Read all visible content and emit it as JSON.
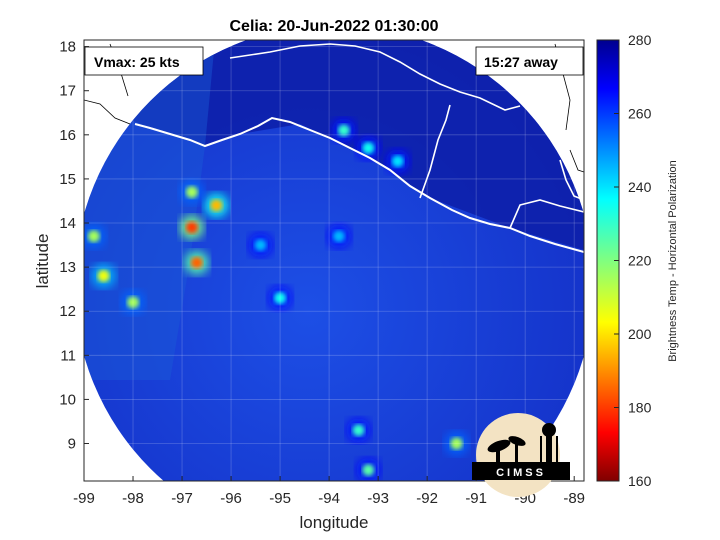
{
  "chart_data": {
    "type": "heatmap",
    "title": "Celia: 20-Jun-2022 01:30:00",
    "xlabel": "longitude",
    "ylabel": "latitude",
    "xlim": [
      -99,
      -88.8
    ],
    "ylim": [
      8.15,
      18.15
    ],
    "xticks": [
      -99,
      -98,
      -97,
      -96,
      -95,
      -94,
      -93,
      -92,
      -91,
      -90,
      -89
    ],
    "yticks": [
      9,
      10,
      11,
      12,
      13,
      14,
      15,
      16,
      17,
      18
    ],
    "grid": true,
    "annotations": {
      "top_left": "Vmax: 25 kts",
      "top_right": "15:27 away"
    },
    "colorbar": {
      "label": "Brightness Temp - Horizontal Polarization",
      "range": [
        160,
        280
      ],
      "ticks": [
        160,
        180,
        200,
        220,
        240,
        260,
        280
      ],
      "colormap": "jet"
    },
    "swath": {
      "center_lon": -93.9,
      "center_lat": 12.6,
      "radius_deg": 5.3
    },
    "cold_features": [
      {
        "lon": -96.7,
        "lat": 13.1,
        "value": 185
      },
      {
        "lon": -96.8,
        "lat": 13.9,
        "value": 180
      },
      {
        "lon": -96.3,
        "lat": 14.4,
        "value": 195
      },
      {
        "lon": -96.8,
        "lat": 14.7,
        "value": 215
      },
      {
        "lon": -98.6,
        "lat": 12.8,
        "value": 205
      },
      {
        "lon": -98.8,
        "lat": 13.7,
        "value": 215
      },
      {
        "lon": -98.0,
        "lat": 12.2,
        "value": 215
      },
      {
        "lon": -93.7,
        "lat": 16.1,
        "value": 230
      },
      {
        "lon": -93.2,
        "lat": 15.7,
        "value": 235
      },
      {
        "lon": -92.6,
        "lat": 15.4,
        "value": 240
      },
      {
        "lon": -95.0,
        "lat": 12.3,
        "value": 235
      },
      {
        "lon": -95.4,
        "lat": 13.5,
        "value": 245
      },
      {
        "lon": -93.8,
        "lat": 13.7,
        "value": 245
      },
      {
        "lon": -93.4,
        "lat": 9.3,
        "value": 230
      },
      {
        "lon": -91.4,
        "lat": 9.0,
        "value": 215
      },
      {
        "lon": -93.2,
        "lat": 8.4,
        "value": 225
      }
    ],
    "logo_text": "CIMSS"
  }
}
